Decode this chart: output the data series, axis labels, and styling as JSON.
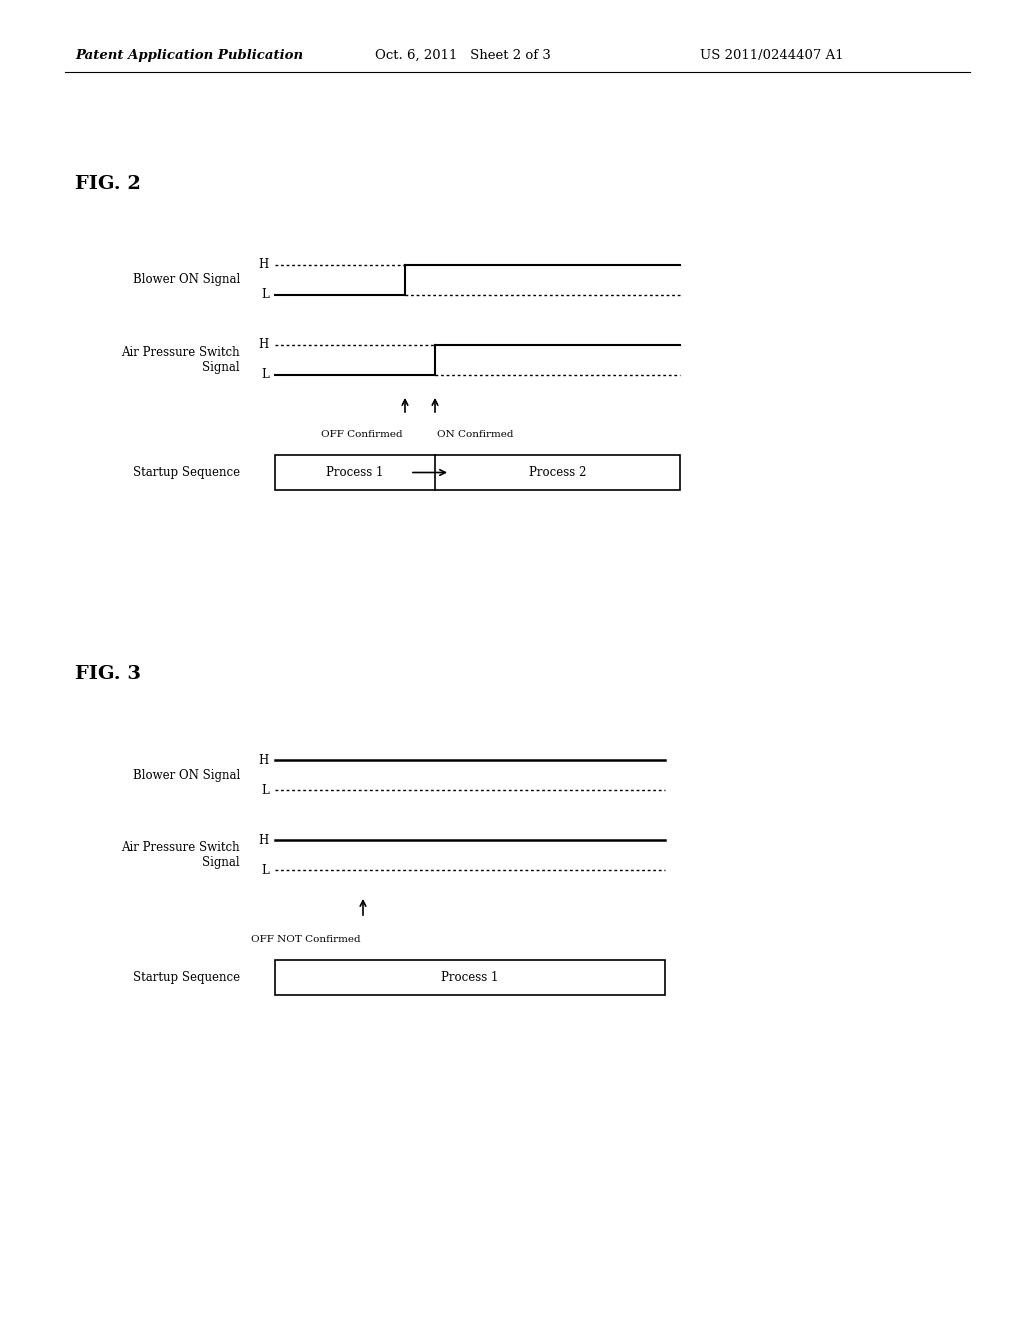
{
  "bg_color": "#ffffff",
  "header_left": "Patent Application Publication",
  "header_mid": "Oct. 6, 2011   Sheet 2 of 3",
  "header_right": "US 2011/0244407 A1",
  "fig2_label": "FIG. 2",
  "fig3_label": "FIG. 3",
  "fig2": {
    "blower_label": "Blower ON Signal",
    "airpressure_label": "Air Pressure Switch\nSignal",
    "startup_label": "Startup Sequence",
    "off_confirmed_label": "OFF Confirmed",
    "on_confirmed_label": "ON Confirmed",
    "process1_label": "Process 1",
    "process2_label": "Process 2"
  },
  "fig3": {
    "blower_label": "Blower ON Signal",
    "airpressure_label": "Air Pressure Switch\nSignal",
    "startup_label": "Startup Sequence",
    "off_not_confirmed_label": "OFF NOT Confirmed",
    "process1_label": "Process 1"
  }
}
